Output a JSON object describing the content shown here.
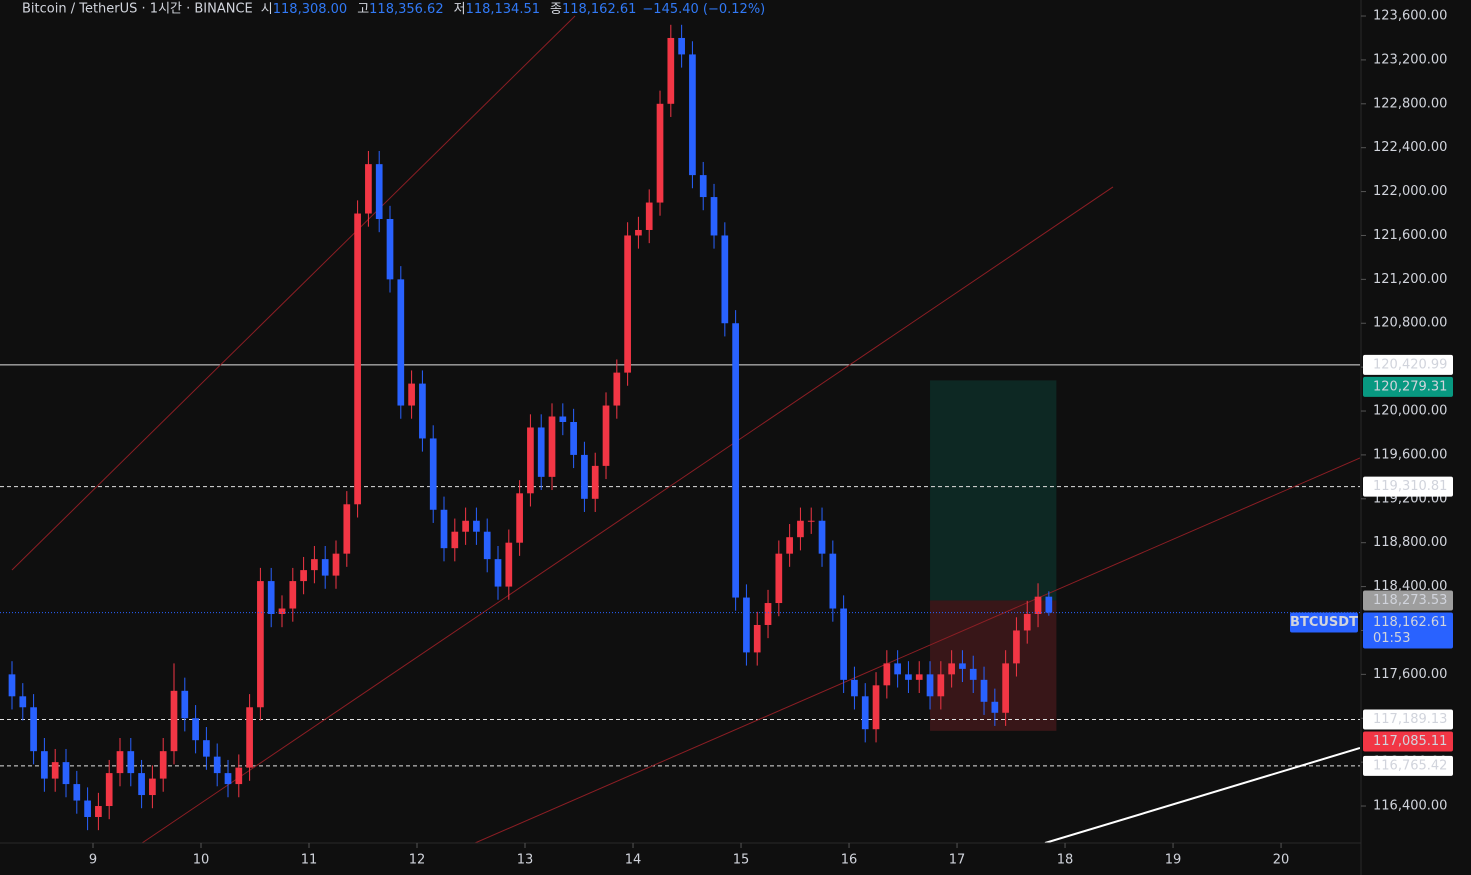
{
  "chart_data": {
    "type": "candlestick",
    "title": "Bitcoin / TetherUS · 1시간 · BINANCE",
    "ohlc_legend": [
      {
        "key": "시",
        "text": "118,308.00"
      },
      {
        "key": "고",
        "text": "118,356.62"
      },
      {
        "key": "저",
        "text": "118,134.51"
      },
      {
        "key": "종",
        "text": "118,162.61"
      }
    ],
    "change": "−145.40 (−0.12%)",
    "up_color": "#f23645",
    "down_color": "#2962ff",
    "xlim": [
      8.139,
      20.731
    ],
    "xticks": [
      9,
      10,
      11,
      12,
      13,
      14,
      15,
      16,
      17,
      18,
      19,
      20
    ],
    "ylim": [
      116063,
      123746
    ],
    "yticks": [
      {
        "value": 116400,
        "label": "116,400.00"
      },
      {
        "value": 116800,
        "label": "116,800.00"
      },
      {
        "value": 117200,
        "label": "117,200.00"
      },
      {
        "value": 117600,
        "label": "117,600.00"
      },
      {
        "value": 118000,
        "label": "118,000.00"
      },
      {
        "value": 118400,
        "label": "118,400.00"
      },
      {
        "value": 118800,
        "label": "118,800.00"
      },
      {
        "value": 119200,
        "label": "119,200.00"
      },
      {
        "value": 119600,
        "label": "119,600.00"
      },
      {
        "value": 120000,
        "label": "120,000.00"
      },
      {
        "value": 120400,
        "label": "120,400.00"
      },
      {
        "value": 120800,
        "label": "120,800.00"
      },
      {
        "value": 121200,
        "label": "121,200.00"
      },
      {
        "value": 121600,
        "label": "121,600.00"
      },
      {
        "value": 122000,
        "label": "122,000.00"
      },
      {
        "value": 122400,
        "label": "122,400.00"
      },
      {
        "value": 122800,
        "label": "122,800.00"
      },
      {
        "value": 123200,
        "label": "123,200.00"
      },
      {
        "value": 123600,
        "label": "123,600.00"
      }
    ],
    "x": [
      8.25,
      8.35,
      8.45,
      8.55,
      8.65,
      8.75,
      8.85,
      8.95,
      9.05,
      9.15,
      9.25,
      9.35,
      9.45,
      9.55,
      9.65,
      9.75,
      9.85,
      9.95,
      10.05,
      10.15,
      10.25,
      10.35,
      10.45,
      10.55,
      10.65,
      10.75,
      10.85,
      10.95,
      11.05,
      11.15,
      11.25,
      11.35,
      11.45,
      11.55,
      11.65,
      11.75,
      11.85,
      11.95,
      12.05,
      12.15,
      12.25,
      12.35,
      12.45,
      12.55,
      12.65,
      12.75,
      12.85,
      12.95,
      13.05,
      13.15,
      13.25,
      13.35,
      13.45,
      13.55,
      13.65,
      13.75,
      13.85,
      13.95,
      14.05,
      14.15,
      14.25,
      14.35,
      14.45,
      14.55,
      14.65,
      14.75,
      14.85,
      14.95,
      15.05,
      15.15,
      15.25,
      15.35,
      15.45,
      15.55,
      15.65,
      15.75,
      15.85,
      15.95,
      16.05,
      16.15,
      16.25,
      16.35,
      16.45,
      16.55,
      16.65,
      16.75,
      16.85,
      16.95,
      17.05,
      17.15,
      17.25,
      17.35,
      17.45,
      17.55,
      17.65,
      17.75,
      17.85
    ],
    "ohlc": {
      "open": [
        117600,
        117400,
        117300,
        116900,
        116650,
        116800,
        116600,
        116450,
        116300,
        116400,
        116700,
        116900,
        116700,
        116500,
        116650,
        116900,
        117450,
        117200,
        117000,
        116850,
        116700,
        116600,
        116750,
        117300,
        118450,
        118150,
        118200,
        118450,
        118550,
        118650,
        118500,
        118700,
        119150,
        121800,
        122250,
        121750,
        121200,
        120050,
        120250,
        119750,
        119100,
        118750,
        118900,
        119000,
        118900,
        118650,
        118400,
        118800,
        119250,
        119850,
        119400,
        119950,
        119900,
        119600,
        119200,
        119500,
        120050,
        120350,
        121600,
        121650,
        121900,
        122800,
        123400,
        123250,
        122150,
        121950,
        121600,
        120800,
        118300,
        117800,
        118050,
        118250,
        118700,
        118850,
        119000,
        119000,
        118700,
        118200,
        117550,
        117400,
        117100,
        117500,
        117700,
        117600,
        117550,
        117600,
        117400,
        117600,
        117700,
        117650,
        117550,
        117350,
        117250,
        117700,
        118000,
        118150,
        118308
      ],
      "high": [
        117720,
        117520,
        117420,
        117020,
        116920,
        116920,
        116720,
        116570,
        116520,
        116820,
        117020,
        117020,
        116820,
        116770,
        117020,
        117700,
        117570,
        117320,
        117120,
        116970,
        116820,
        116870,
        117420,
        118570,
        118570,
        118320,
        118570,
        118670,
        118770,
        118770,
        118820,
        119270,
        121920,
        122370,
        122370,
        121870,
        121320,
        120370,
        120370,
        119870,
        119220,
        119020,
        119120,
        119120,
        119020,
        118770,
        118920,
        119370,
        119970,
        119970,
        120070,
        120070,
        120020,
        119720,
        119620,
        120170,
        120470,
        121720,
        121770,
        122020,
        122920,
        123520,
        123520,
        123370,
        122270,
        122070,
        121720,
        120920,
        118420,
        118170,
        118370,
        118820,
        118970,
        119120,
        119120,
        119120,
        118820,
        118320,
        117670,
        117520,
        117620,
        117820,
        117820,
        117720,
        117720,
        117720,
        117720,
        117820,
        117820,
        117770,
        117670,
        117470,
        117820,
        118120,
        118270,
        118430,
        118356.62
      ],
      "low": [
        117280,
        117180,
        116780,
        116530,
        116530,
        116480,
        116330,
        116180,
        116180,
        116280,
        116580,
        116580,
        116380,
        116380,
        116530,
        116780,
        117080,
        116880,
        116730,
        116580,
        116480,
        116480,
        116630,
        117180,
        118030,
        118030,
        118080,
        118330,
        118430,
        118380,
        118380,
        118580,
        119030,
        121680,
        121630,
        121080,
        119930,
        119930,
        119630,
        118980,
        118630,
        118630,
        118780,
        118780,
        118530,
        118280,
        118280,
        118680,
        119130,
        119280,
        119280,
        119780,
        119480,
        119080,
        119080,
        119380,
        119930,
        120230,
        121480,
        121530,
        121780,
        122680,
        123130,
        122030,
        121830,
        121480,
        120680,
        118180,
        117680,
        117680,
        117930,
        118130,
        118580,
        118730,
        118880,
        118580,
        118080,
        117430,
        117280,
        116980,
        116980,
        117380,
        117480,
        117430,
        117430,
        117280,
        117280,
        117480,
        117530,
        117430,
        117230,
        117130,
        117130,
        117580,
        117880,
        118030,
        118134.51
      ],
      "close": [
        117400,
        117300,
        116900,
        116650,
        116800,
        116600,
        116450,
        116300,
        116400,
        116700,
        116900,
        116700,
        116500,
        116650,
        116900,
        117450,
        117200,
        117000,
        116850,
        116700,
        116600,
        116750,
        117300,
        118450,
        118150,
        118200,
        118450,
        118550,
        118650,
        118500,
        118700,
        119150,
        121800,
        122250,
        121750,
        121200,
        120050,
        120250,
        119750,
        119100,
        118750,
        118900,
        119000,
        118900,
        118650,
        118400,
        118800,
        119250,
        119850,
        119400,
        119950,
        119900,
        119600,
        119200,
        119500,
        120050,
        120350,
        121600,
        121650,
        121900,
        122800,
        123400,
        123250,
        122150,
        121950,
        121600,
        120800,
        118300,
        117800,
        118050,
        118250,
        118700,
        118850,
        119000,
        119000,
        118700,
        118200,
        117550,
        117400,
        117100,
        117500,
        117700,
        117600,
        117550,
        117600,
        117400,
        117600,
        117700,
        117650,
        117550,
        117350,
        117250,
        117700,
        118000,
        118150,
        118308,
        118162.61
      ]
    },
    "levels": [
      {
        "value": 120420.99,
        "label": "120,420.99",
        "style": "solid"
      },
      {
        "value": 119310.81,
        "label": "119,310.81",
        "style": "dashed"
      },
      {
        "value": 117189.13,
        "label": "117,189.13",
        "style": "dashed"
      },
      {
        "value": 116765.42,
        "label": "116,765.42",
        "style": "dashed"
      }
    ],
    "position": {
      "x": [
        16.75,
        17.92
      ],
      "target": {
        "value": 120279.31,
        "label": "120,279.31",
        "color": "#089981"
      },
      "entry": {
        "value": 118273.53,
        "label": "118,273.53",
        "color": "#9e9e9e"
      },
      "stop": {
        "value": 117085.11,
        "label": "117,085.11",
        "color": "#f23645"
      }
    },
    "last_price": {
      "label": "118,162.61",
      "countdown": "01:53",
      "symbol": "BTCUSDT",
      "color": "#2962ff"
    },
    "trendlines": [
      {
        "x": [
          8.25,
          13.463
        ],
        "y": [
          118551,
          123600
        ],
        "color": "#8b1e24"
      },
      {
        "x": [
          9.454,
          18.444
        ],
        "y": [
          116063,
          122042
        ],
        "color": "#8b1e24"
      },
      {
        "x": [
          12.537,
          20.731
        ],
        "y": [
          116063,
          119572
        ],
        "color": "#8b1e24"
      },
      {
        "x": [
          17.815,
          20.731
        ],
        "y": [
          116063,
          116929
        ],
        "color": "#ffffff"
      }
    ]
  }
}
